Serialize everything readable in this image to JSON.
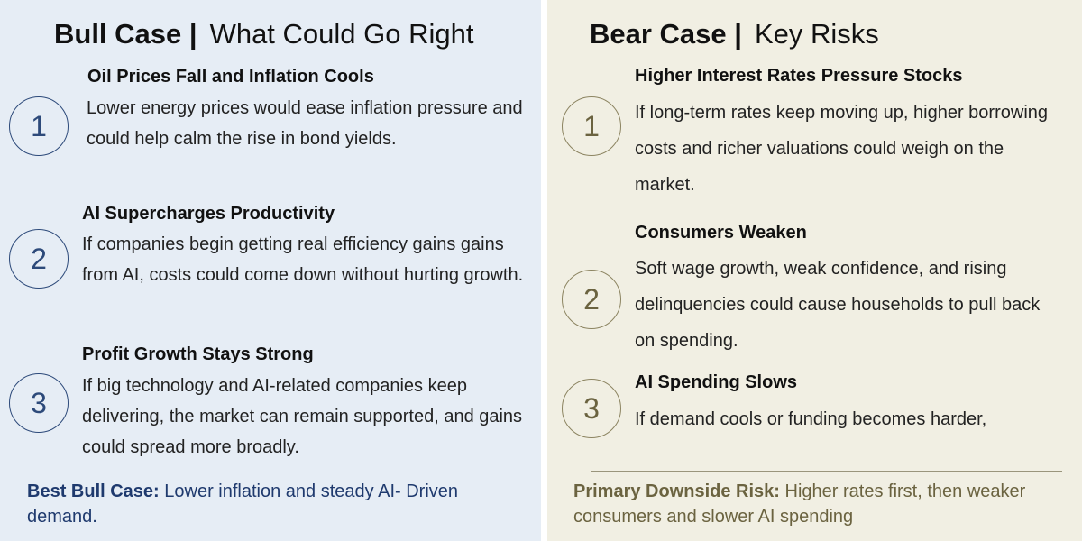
{
  "bull": {
    "title": "Bull Case |",
    "subtitle": "What Could Go Right",
    "items": [
      {
        "number": "1",
        "heading": "Oil Prices Fall and Inflation Cools",
        "body": "Lower energy prices would ease inflation pressure and could help calm the rise in bond yields."
      },
      {
        "number": "2",
        "heading": "AI Supercharges Productivity",
        "body": "If companies begin getting real efficiency gains gains from AI, costs could come down without hurting growth."
      },
      {
        "number": "3",
        "heading": "Profit Growth Stays Strong",
        "body": "If big technology and AI-related companies keep delivering, the market can remain supported, and gains could spread more broadly."
      }
    ],
    "summary_label": "Best Bull Case:",
    "summary_text": "Lower inflation and steady AI- Driven demand."
  },
  "bear": {
    "title": "Bear Case |",
    "subtitle": "Key Risks",
    "items": [
      {
        "number": "1",
        "heading": "Higher Interest Rates Pressure Stocks",
        "body": "If long-term rates keep moving up, higher borrowing costs and richer valuations could weigh on the market."
      },
      {
        "number": "2",
        "heading": "Consumers Weaken",
        "body": "Soft wage growth, weak confidence, and rising delinquencies could cause households to pull back on spending."
      },
      {
        "number": "3",
        "heading": "AI Spending Slows",
        "body": "If demand cools or funding becomes harder,"
      }
    ],
    "summary_label": "Primary Downside Risk:",
    "summary_text": "Higher rates first, then weaker consumers and slower AI spending"
  }
}
